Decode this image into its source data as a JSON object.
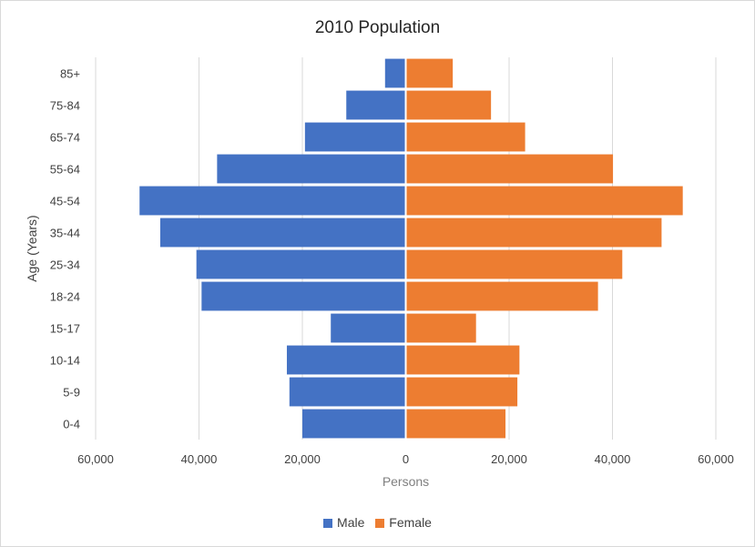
{
  "chart_data": {
    "type": "bar",
    "orientation": "horizontal",
    "layout": "population-pyramid",
    "title": "2010 Population",
    "xlabel": "Persons",
    "ylabel": "Age (Years)",
    "categories": [
      "0-4",
      "5-9",
      "10-14",
      "15-17",
      "18-24",
      "25-34",
      "35-44",
      "45-54",
      "55-64",
      "65-74",
      "75-84",
      "85+"
    ],
    "series": [
      {
        "name": "Male",
        "color": "#4472c4",
        "values": [
          20000,
          22500,
          23000,
          14500,
          39500,
          40500,
          47500,
          51500,
          36500,
          19500,
          11500,
          4000
        ]
      },
      {
        "name": "Female",
        "color": "#ed7d31",
        "values": [
          19300,
          21600,
          22000,
          13600,
          37200,
          41900,
          49500,
          53600,
          40100,
          23100,
          16500,
          9100
        ]
      }
    ],
    "xlim": [
      -60000,
      60000
    ],
    "xticks": [
      -60000,
      -40000,
      -20000,
      0,
      20000,
      40000,
      60000
    ],
    "xtick_labels": [
      "60,000",
      "40,000",
      "20,000",
      "0",
      "20,000",
      "40,000",
      "60,000"
    ],
    "grid": "vertical",
    "legend_position": "bottom"
  }
}
